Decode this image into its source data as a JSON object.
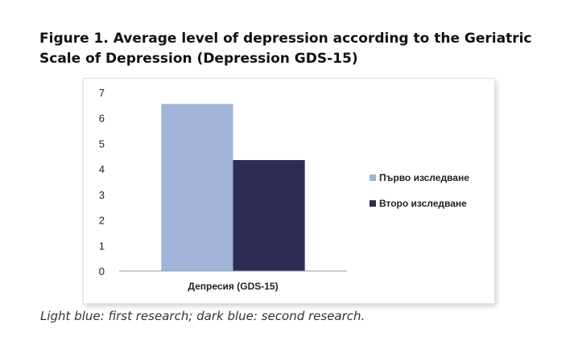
{
  "figure": {
    "title": "Figure 1. Average level of depression according to the Geriatric Scale of Depression (Depression GDS-15)",
    "caption": "Light blue: first research; dark blue: second research."
  },
  "chart_data": {
    "type": "bar",
    "categories": [
      "Депресия (GDS-15)"
    ],
    "series": [
      {
        "name": "Първо изследване",
        "values": [
          6.55
        ],
        "color": "#9fb4d8"
      },
      {
        "name": "Второ изследване",
        "values": [
          4.35
        ],
        "color": "#2e2c55"
      }
    ],
    "ylim": [
      0,
      7
    ],
    "yticks": [
      "0",
      "1",
      "2",
      "3",
      "4",
      "5",
      "6",
      "7"
    ],
    "grid": false,
    "legend": "right"
  }
}
